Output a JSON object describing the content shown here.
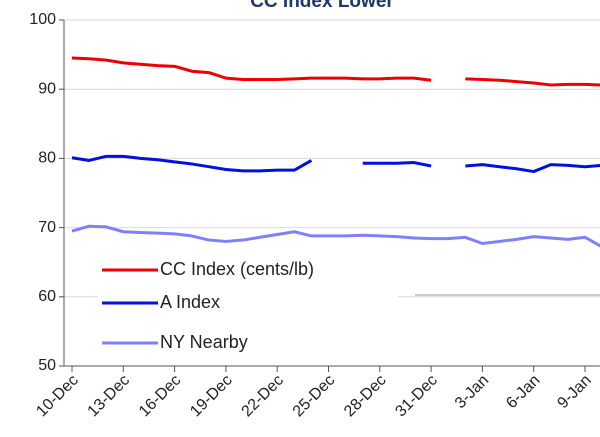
{
  "chart_data": {
    "type": "line",
    "title": "CC Index Lower",
    "categories": [
      "10-Dec",
      null,
      null,
      "13-Dec",
      null,
      null,
      "16-Dec",
      null,
      null,
      "19-Dec",
      null,
      null,
      "22-Dec",
      null,
      null,
      "25-Dec",
      null,
      null,
      "28-Dec",
      null,
      null,
      "31-Dec",
      null,
      null,
      "3-Jan",
      null,
      null,
      "6-Jan",
      null,
      null,
      "9-Jan",
      null
    ],
    "series": [
      {
        "name": "CC Index (cents/lb)",
        "color": "#ee0000",
        "values": [
          94.5,
          94.4,
          94.2,
          93.8,
          93.6,
          93.4,
          93.3,
          92.6,
          92.4,
          91.6,
          91.4,
          91.4,
          91.4,
          91.5,
          91.6,
          91.6,
          91.6,
          91.5,
          91.5,
          91.6,
          91.6,
          91.3,
          null,
          91.5,
          91.4,
          91.3,
          91.1,
          90.9,
          90.6,
          90.7,
          90.7,
          90.6
        ]
      },
      {
        "name": "A Index",
        "color": "#0010dd",
        "values": [
          80.1,
          79.7,
          80.3,
          80.3,
          80.0,
          79.8,
          79.5,
          79.2,
          78.8,
          78.4,
          78.2,
          78.2,
          78.3,
          78.3,
          79.7,
          null,
          null,
          79.3,
          79.3,
          79.3,
          79.4,
          78.9,
          null,
          78.9,
          79.1,
          78.8,
          78.5,
          78.1,
          79.1,
          79.0,
          78.8,
          79.0
        ]
      },
      {
        "name": "NY Nearby",
        "color": "#8080ff",
        "values": [
          69.5,
          70.2,
          70.1,
          69.4,
          69.3,
          69.2,
          69.1,
          68.8,
          68.2,
          68.0,
          68.2,
          68.6,
          69.0,
          69.4,
          68.8,
          68.8,
          68.8,
          68.9,
          68.8,
          68.7,
          68.5,
          68.4,
          68.4,
          68.6,
          67.7,
          68.0,
          68.3,
          68.7,
          68.5,
          68.3,
          68.6,
          67.2
        ]
      }
    ],
    "ylim": [
      50,
      100
    ],
    "yticks": [
      50,
      60,
      70,
      80,
      90,
      100
    ],
    "grid": true
  }
}
